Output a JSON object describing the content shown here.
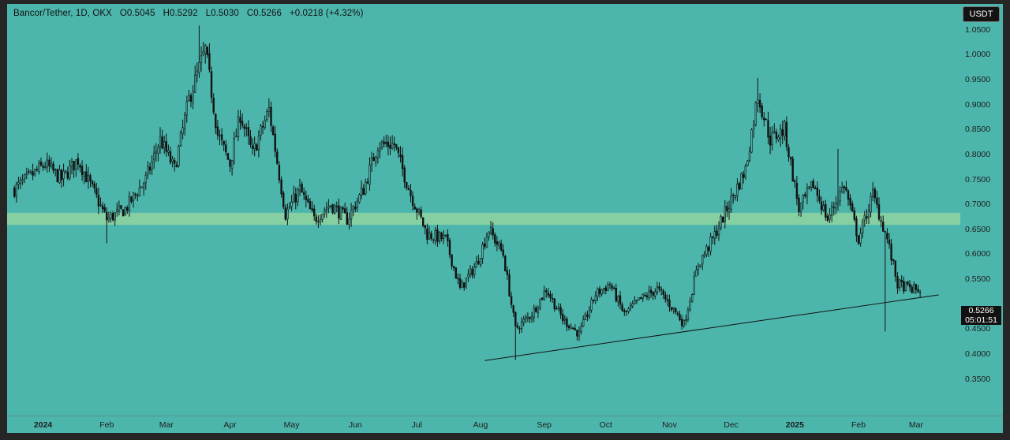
{
  "legend": {
    "symbol": "Bancor/Tether",
    "interval": "1D",
    "exchange": "OKX",
    "open_label": "O",
    "open": "0.5045",
    "high_label": "H",
    "high": "0.5292",
    "low_label": "L",
    "low": "0.5030",
    "close_label": "C",
    "close": "0.5266",
    "change": "+0.0218 (+4.32%)"
  },
  "price_scale": {
    "currency": "USDT",
    "ticks": [
      "1.0500",
      "1.0000",
      "0.9500",
      "0.9000",
      "0.8500",
      "0.8000",
      "0.7500",
      "0.7000",
      "0.6500",
      "0.6000",
      "0.5500",
      "0.4500",
      "0.4000",
      "0.3500"
    ],
    "last_price": "0.5266",
    "countdown": "05:01:51"
  },
  "time_axis": {
    "labels": [
      {
        "text": "2024",
        "bold": true
      },
      {
        "text": "Feb",
        "bold": false
      },
      {
        "text": "Mar",
        "bold": false
      },
      {
        "text": "Apr",
        "bold": false
      },
      {
        "text": "May",
        "bold": false
      },
      {
        "text": "Jun",
        "bold": false
      },
      {
        "text": "Jul",
        "bold": false
      },
      {
        "text": "Aug",
        "bold": false
      },
      {
        "text": "Sep",
        "bold": false
      },
      {
        "text": "Oct",
        "bold": false
      },
      {
        "text": "Nov",
        "bold": false
      },
      {
        "text": "Dec",
        "bold": false
      },
      {
        "text": "2025",
        "bold": true
      },
      {
        "text": "Feb",
        "bold": false
      },
      {
        "text": "Mar",
        "bold": false
      }
    ]
  },
  "colors": {
    "background": "#4db6ac",
    "zone": "#8fd3a0",
    "candle": "#111111",
    "trendline": "#111111"
  },
  "chart_data": {
    "type": "candlestick",
    "title": "Bancor/Tether, 1D, OKX",
    "x_range": [
      "2023-12-18",
      "2025-03-10"
    ],
    "ylim": [
      0.32,
      1.1
    ],
    "support_zone": [
      0.659,
      0.683
    ],
    "trendline": {
      "points": [
        [
          "2024-08-03",
          0.387
        ],
        [
          "2025-03-01",
          0.512
        ]
      ]
    },
    "knots": [
      [
        "2023-12-18",
        0.73
      ],
      [
        "2024-01-02",
        0.78
      ],
      [
        "2024-01-10",
        0.75
      ],
      [
        "2024-01-18",
        0.79
      ],
      [
        "2024-01-25",
        0.73
      ],
      [
        "2024-02-01",
        0.67
      ],
      [
        "2024-02-10",
        0.69
      ],
      [
        "2024-02-20",
        0.75
      ],
      [
        "2024-02-27",
        0.83
      ],
      [
        "2024-03-05",
        0.77
      ],
      [
        "2024-03-12",
        0.91
      ],
      [
        "2024-03-20",
        1.01
      ],
      [
        "2024-03-26",
        0.84
      ],
      [
        "2024-04-01",
        0.78
      ],
      [
        "2024-04-06",
        0.88
      ],
      [
        "2024-04-12",
        0.8
      ],
      [
        "2024-04-20",
        0.89
      ],
      [
        "2024-04-28",
        0.68
      ],
      [
        "2024-05-05",
        0.73
      ],
      [
        "2024-05-12",
        0.67
      ],
      [
        "2024-05-20",
        0.7
      ],
      [
        "2024-05-28",
        0.67
      ],
      [
        "2024-06-05",
        0.73
      ],
      [
        "2024-06-12",
        0.82
      ],
      [
        "2024-06-20",
        0.82
      ],
      [
        "2024-06-28",
        0.72
      ],
      [
        "2024-07-06",
        0.64
      ],
      [
        "2024-07-15",
        0.63
      ],
      [
        "2024-07-22",
        0.53
      ],
      [
        "2024-07-30",
        0.58
      ],
      [
        "2024-08-05",
        0.65
      ],
      [
        "2024-08-12",
        0.6
      ],
      [
        "2024-08-18",
        0.45
      ],
      [
        "2024-08-26",
        0.48
      ],
      [
        "2024-09-02",
        0.53
      ],
      [
        "2024-09-10",
        0.47
      ],
      [
        "2024-09-18",
        0.44
      ],
      [
        "2024-09-26",
        0.52
      ],
      [
        "2024-10-03",
        0.54
      ],
      [
        "2024-10-10",
        0.48
      ],
      [
        "2024-10-18",
        0.51
      ],
      [
        "2024-10-26",
        0.53
      ],
      [
        "2024-11-03",
        0.49
      ],
      [
        "2024-11-08",
        0.46
      ],
      [
        "2024-11-15",
        0.58
      ],
      [
        "2024-11-22",
        0.63
      ],
      [
        "2024-11-30",
        0.7
      ],
      [
        "2024-12-08",
        0.77
      ],
      [
        "2024-12-14",
        0.92
      ],
      [
        "2024-12-20",
        0.83
      ],
      [
        "2024-12-27",
        0.85
      ],
      [
        "2025-01-03",
        0.69
      ],
      [
        "2025-01-10",
        0.74
      ],
      [
        "2025-01-17",
        0.67
      ],
      [
        "2025-01-25",
        0.74
      ],
      [
        "2025-02-01",
        0.63
      ],
      [
        "2025-02-08",
        0.72
      ],
      [
        "2025-02-15",
        0.63
      ],
      [
        "2025-02-20",
        0.54
      ],
      [
        "2025-02-27",
        0.53
      ],
      [
        "2025-03-03",
        0.527
      ]
    ],
    "notable_wicks": [
      [
        "2024-03-17",
        1.058
      ],
      [
        "2024-02-01",
        0.622
      ],
      [
        "2024-08-18",
        0.388
      ],
      [
        "2025-01-22",
        0.811
      ],
      [
        "2025-02-14",
        0.445
      ],
      [
        "2024-12-14",
        0.953
      ]
    ],
    "last": {
      "date": "2025-03-03",
      "open": 0.5045,
      "high": 0.5292,
      "low": 0.503,
      "close": 0.5266
    }
  }
}
